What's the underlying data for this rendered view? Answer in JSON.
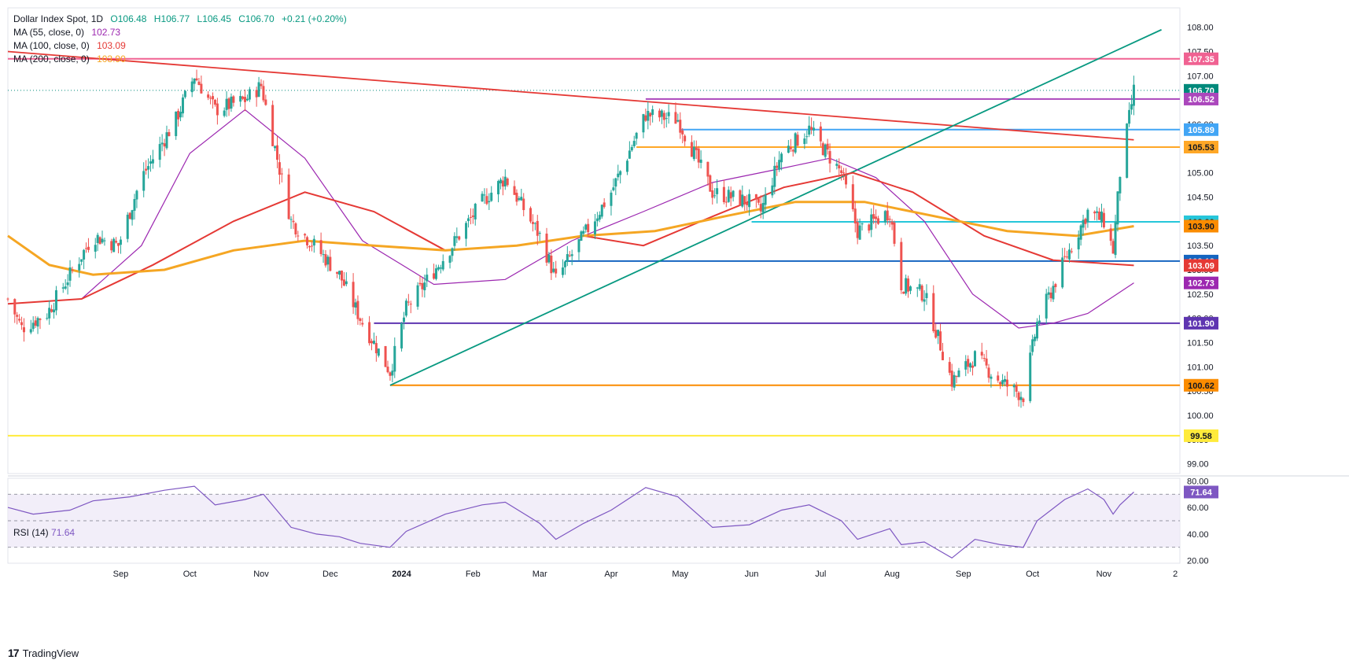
{
  "header": {
    "symbol": "Dollar Index Spot, 1D",
    "open": "O106.48",
    "high": "H106.77",
    "low": "L106.45",
    "close": "C106.70",
    "change": "+0.21 (+0.20%)"
  },
  "indicators": [
    {
      "label": "MA (55, close, 0)",
      "value": "102.73",
      "color": "#9c27b0"
    },
    {
      "label": "MA (100, close, 0)",
      "value": "103.09",
      "color": "#e53935"
    },
    {
      "label": "MA (200, close, 0)",
      "value": "103.90",
      "color": "#f5a623"
    }
  ],
  "rsi": {
    "label": "RSI (14)",
    "value": "71.64",
    "badge": "71.64"
  },
  "brand": {
    "name": "TradingView",
    "logo": "17"
  },
  "colors": {
    "up": "#26a69a",
    "down": "#ef5350",
    "ma55": "#9c27b0",
    "ma100": "#e53935",
    "ma200": "#f5a623",
    "trend_red": "#e53935",
    "trend_green": "#089981",
    "rsi": "#7e57c2",
    "rsi_band": "#ede7f6"
  },
  "chart_data": [
    {
      "type": "line",
      "title": "Dollar Index Spot, 1D",
      "y_ticks": [
        "108.00",
        "107.50",
        "107.00",
        "106.50",
        "106.00",
        "105.50",
        "105.00",
        "104.50",
        "104.00",
        "103.50",
        "103.00",
        "102.50",
        "102.00",
        "101.50",
        "101.00",
        "100.50",
        "100.00",
        "99.50",
        "99.00"
      ],
      "ylim": [
        98.8,
        108.4
      ],
      "x_ticks": [
        "Sep",
        "Oct",
        "Nov",
        "Dec",
        "2024",
        "Feb",
        "Mar",
        "Apr",
        "May",
        "Jun",
        "Jul",
        "Aug",
        "Sep",
        "Oct",
        "Nov",
        "2"
      ],
      "x_tick_dates": [
        "2023-09-01",
        "2023-10-01",
        "2023-11-01",
        "2023-12-01",
        "2024-01-01",
        "2024-02-01",
        "2024-03-01",
        "2024-04-01",
        "2024-05-01",
        "2024-06-01",
        "2024-07-01",
        "2024-08-01",
        "2024-09-01",
        "2024-10-01",
        "2024-11-01",
        "2024-12-02"
      ],
      "xlim": [
        "2023-07-14",
        "2024-12-04"
      ],
      "price_path": [
        [
          "2023-07-14",
          102.4
        ],
        [
          "2023-07-20",
          101.8
        ],
        [
          "2023-07-31",
          102.1
        ],
        [
          "2023-08-10",
          102.9
        ],
        [
          "2023-08-20",
          103.7
        ],
        [
          "2023-08-31",
          103.5
        ],
        [
          "2023-09-10",
          104.9
        ],
        [
          "2023-09-25",
          106.1
        ],
        [
          "2023-10-03",
          107.0
        ],
        [
          "2023-10-12",
          106.3
        ],
        [
          "2023-10-25",
          106.5
        ],
        [
          "2023-11-01",
          106.8
        ],
        [
          "2023-11-14",
          104.0
        ],
        [
          "2023-11-24",
          103.5
        ],
        [
          "2023-12-05",
          102.9
        ],
        [
          "2023-12-14",
          102.0
        ],
        [
          "2023-12-27",
          100.9
        ],
        [
          "2024-01-03",
          102.2
        ],
        [
          "2024-01-20",
          103.3
        ],
        [
          "2024-02-05",
          104.4
        ],
        [
          "2024-02-15",
          104.9
        ],
        [
          "2024-03-01",
          103.7
        ],
        [
          "2024-03-08",
          102.8
        ],
        [
          "2024-03-20",
          103.7
        ],
        [
          "2024-04-01",
          104.6
        ],
        [
          "2024-04-16",
          106.2
        ],
        [
          "2024-04-30",
          106.1
        ],
        [
          "2024-05-15",
          104.6
        ],
        [
          "2024-05-31",
          104.4
        ],
        [
          "2024-06-05",
          104.2
        ],
        [
          "2024-06-14",
          105.4
        ],
        [
          "2024-06-26",
          105.9
        ],
        [
          "2024-07-10",
          105.0
        ],
        [
          "2024-07-17",
          103.8
        ],
        [
          "2024-07-31",
          104.2
        ],
        [
          "2024-08-05",
          102.7
        ],
        [
          "2024-08-15",
          102.5
        ],
        [
          "2024-08-27",
          100.7
        ],
        [
          "2024-09-06",
          101.2
        ],
        [
          "2024-09-17",
          100.7
        ],
        [
          "2024-09-27",
          100.4
        ],
        [
          "2024-10-03",
          101.9
        ],
        [
          "2024-10-15",
          103.2
        ],
        [
          "2024-10-25",
          104.2
        ],
        [
          "2024-11-01",
          104.0
        ],
        [
          "2024-11-05",
          103.4
        ],
        [
          "2024-11-08",
          105.0
        ],
        [
          "2024-11-14",
          106.7
        ]
      ],
      "series": [
        {
          "name": "MA (55, close, 0)",
          "values": [
            [
              "2023-07-14",
              102.3
            ],
            [
              "2023-08-15",
              102.4
            ],
            [
              "2023-09-10",
              103.5
            ],
            [
              "2023-10-01",
              105.4
            ],
            [
              "2023-10-25",
              106.3
            ],
            [
              "2023-11-20",
              105.3
            ],
            [
              "2023-12-15",
              103.6
            ],
            [
              "2024-01-15",
              102.7
            ],
            [
              "2024-02-15",
              102.8
            ],
            [
              "2024-03-15",
              103.6
            ],
            [
              "2024-04-15",
              104.2
            ],
            [
              "2024-05-15",
              104.8
            ],
            [
              "2024-06-15",
              105.1
            ],
            [
              "2024-07-05",
              105.3
            ],
            [
              "2024-07-25",
              104.9
            ],
            [
              "2024-08-15",
              104.0
            ],
            [
              "2024-09-05",
              102.5
            ],
            [
              "2024-09-25",
              101.8
            ],
            [
              "2024-10-10",
              101.9
            ],
            [
              "2024-10-25",
              102.1
            ],
            [
              "2024-11-14",
              102.73
            ]
          ]
        },
        {
          "name": "MA (100, close, 0)",
          "values": [
            [
              "2023-07-14",
              102.3
            ],
            [
              "2023-08-15",
              102.4
            ],
            [
              "2023-09-15",
              103.1
            ],
            [
              "2023-10-20",
              104.0
            ],
            [
              "2023-11-20",
              104.6
            ],
            [
              "2023-12-20",
              104.2
            ],
            [
              "2024-01-20",
              103.4
            ],
            [
              "2024-02-20",
              103.5
            ],
            [
              "2024-03-20",
              103.7
            ],
            [
              "2024-04-15",
              103.5
            ],
            [
              "2024-05-15",
              104.1
            ],
            [
              "2024-06-15",
              104.7
            ],
            [
              "2024-07-15",
              105.0
            ],
            [
              "2024-08-10",
              104.6
            ],
            [
              "2024-09-10",
              103.7
            ],
            [
              "2024-10-10",
              103.2
            ],
            [
              "2024-11-14",
              103.09
            ]
          ]
        },
        {
          "name": "MA (200, close, 0)",
          "values": [
            [
              "2023-07-14",
              103.7
            ],
            [
              "2023-08-01",
              103.1
            ],
            [
              "2023-08-20",
              102.9
            ],
            [
              "2023-09-20",
              103.0
            ],
            [
              "2023-10-20",
              103.4
            ],
            [
              "2023-11-20",
              103.6
            ],
            [
              "2023-12-20",
              103.5
            ],
            [
              "2024-01-20",
              103.4
            ],
            [
              "2024-02-20",
              103.5
            ],
            [
              "2024-03-20",
              103.7
            ],
            [
              "2024-04-20",
              103.8
            ],
            [
              "2024-05-20",
              104.1
            ],
            [
              "2024-06-20",
              104.4
            ],
            [
              "2024-07-20",
              104.4
            ],
            [
              "2024-08-20",
              104.1
            ],
            [
              "2024-09-20",
              103.8
            ],
            [
              "2024-10-20",
              103.7
            ],
            [
              "2024-11-14",
              103.9
            ]
          ]
        }
      ],
      "horizontal_levels": [
        {
          "value": 107.35,
          "label": "107.35",
          "color": "#f06292",
          "start": "2023-07-14"
        },
        {
          "value": 106.7,
          "label": "106.70",
          "color": "#00897b",
          "start": "2023-07-14",
          "dotted": true
        },
        {
          "value": 106.52,
          "label": "106.52",
          "color": "#ab47bc",
          "start": "2024-04-16"
        },
        {
          "value": 105.89,
          "label": "105.89",
          "color": "#42a5f5",
          "start": "2024-05-01"
        },
        {
          "value": 105.53,
          "label": "105.53",
          "color": "#ffa726",
          "start": "2024-04-12"
        },
        {
          "value": 103.99,
          "label": "103.99",
          "color": "#26c6da",
          "start": "2024-06-01"
        },
        {
          "value": 103.18,
          "label": "103.18",
          "color": "#1565c0",
          "start": "2024-03-12"
        },
        {
          "value": 101.9,
          "label": "101.90",
          "color": "#5e35b1",
          "start": "2023-12-20"
        },
        {
          "value": 100.62,
          "label": "100.62",
          "color": "#fb8c00",
          "start": "2023-12-27"
        },
        {
          "value": 99.58,
          "label": "99.58",
          "color": "#ffeb3b",
          "start": "2023-07-14"
        }
      ],
      "ma_labels": [
        {
          "label": "103.90",
          "color": "#fb8c00"
        },
        {
          "label": "103.09",
          "color": "#e53935"
        },
        {
          "label": "102.73",
          "color": "#9c27b0"
        }
      ],
      "trendlines": [
        {
          "name": "descending resistance",
          "color": "#e53935",
          "from": [
            "2023-07-14",
            107.5
          ],
          "to": [
            "2024-11-14",
            105.68
          ]
        },
        {
          "name": "ascending support",
          "color": "#089981",
          "from": [
            "2023-12-27",
            100.62
          ],
          "to": [
            "2024-11-26",
            107.95
          ]
        }
      ]
    },
    {
      "type": "line",
      "title": "RSI (14)",
      "ylim": [
        18,
        82
      ],
      "y_ticks": [
        "80.00",
        "60.00",
        "40.00",
        "20.00"
      ],
      "levels": [
        70,
        50,
        30
      ],
      "series": [
        {
          "name": "RSI (14)",
          "values": [
            [
              "2023-07-14",
              60
            ],
            [
              "2023-07-25",
              55
            ],
            [
              "2023-08-10",
              58
            ],
            [
              "2023-08-20",
              65
            ],
            [
              "2023-09-05",
              68
            ],
            [
              "2023-09-20",
              73
            ],
            [
              "2023-10-03",
              76
            ],
            [
              "2023-10-12",
              62
            ],
            [
              "2023-10-25",
              66
            ],
            [
              "2023-11-02",
              70
            ],
            [
              "2023-11-14",
              45
            ],
            [
              "2023-11-25",
              40
            ],
            [
              "2023-12-05",
              38
            ],
            [
              "2023-12-14",
              33
            ],
            [
              "2023-12-27",
              30
            ],
            [
              "2024-01-03",
              42
            ],
            [
              "2024-01-20",
              55
            ],
            [
              "2024-02-05",
              62
            ],
            [
              "2024-02-15",
              64
            ],
            [
              "2024-03-01",
              48
            ],
            [
              "2024-03-08",
              36
            ],
            [
              "2024-03-20",
              48
            ],
            [
              "2024-04-01",
              58
            ],
            [
              "2024-04-16",
              75
            ],
            [
              "2024-04-30",
              68
            ],
            [
              "2024-05-15",
              45
            ],
            [
              "2024-05-31",
              47
            ],
            [
              "2024-06-14",
              58
            ],
            [
              "2024-06-26",
              62
            ],
            [
              "2024-07-10",
              50
            ],
            [
              "2024-07-17",
              36
            ],
            [
              "2024-07-31",
              44
            ],
            [
              "2024-08-05",
              32
            ],
            [
              "2024-08-15",
              34
            ],
            [
              "2024-08-27",
              22
            ],
            [
              "2024-09-06",
              36
            ],
            [
              "2024-09-17",
              32
            ],
            [
              "2024-09-27",
              30
            ],
            [
              "2024-10-03",
              50
            ],
            [
              "2024-10-15",
              66
            ],
            [
              "2024-10-25",
              74
            ],
            [
              "2024-11-01",
              66
            ],
            [
              "2024-11-05",
              55
            ],
            [
              "2024-11-08",
              62
            ],
            [
              "2024-11-14",
              71.64
            ]
          ]
        }
      ]
    }
  ]
}
